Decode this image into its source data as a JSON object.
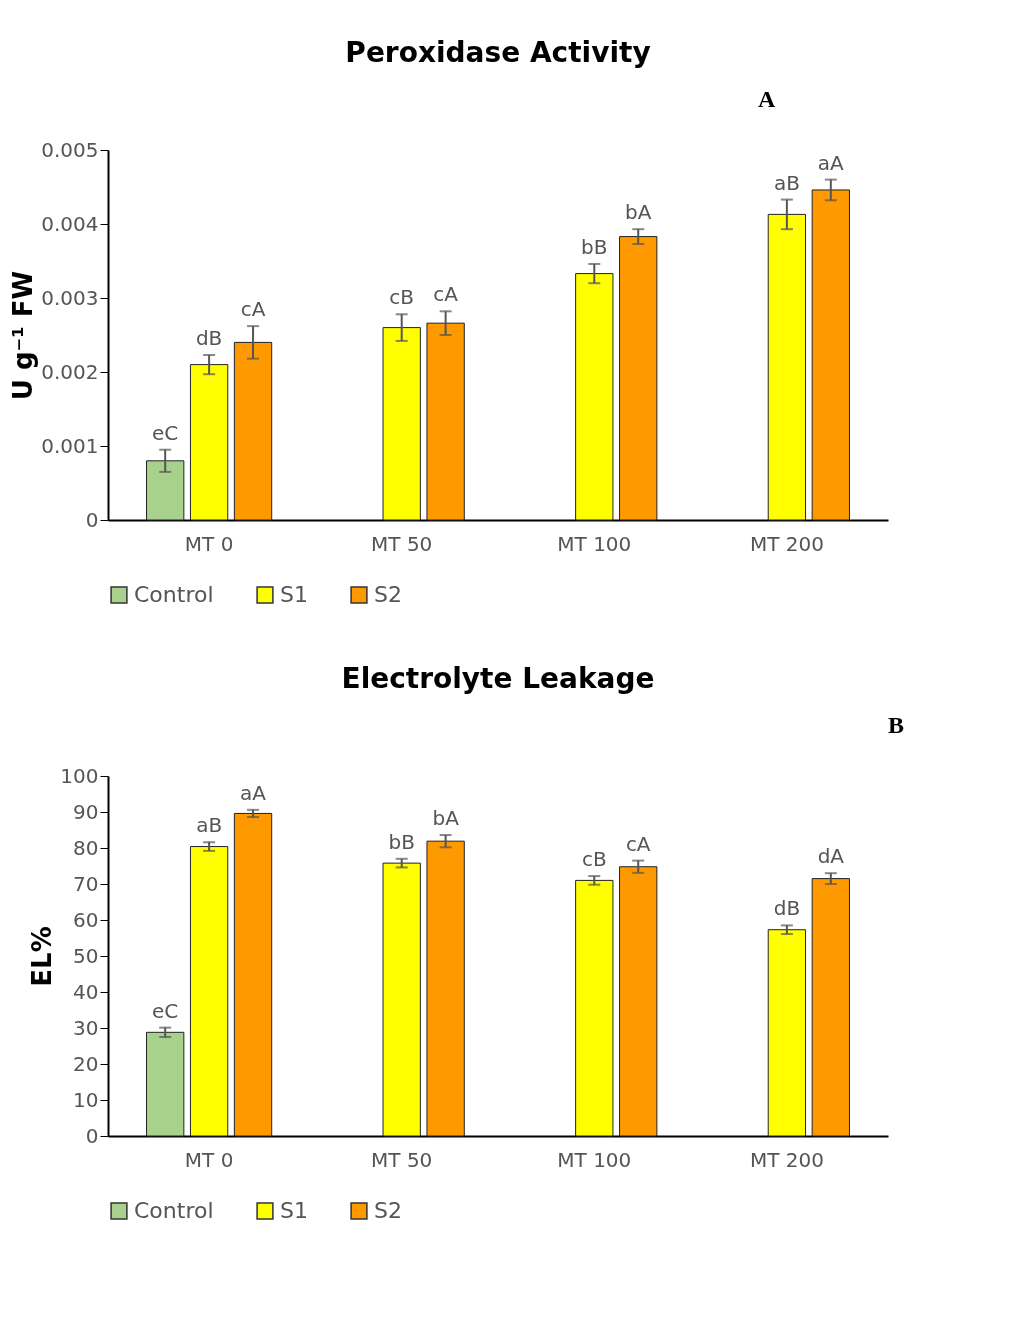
{
  "chart_data": [
    {
      "type": "bar",
      "title": "Peroxidase Activity",
      "ylabel": "U g⁻¹ FW",
      "categories": [
        "MT 0",
        "MT 50",
        "MT 100",
        "MT 200"
      ],
      "ylim": [
        0,
        0.005
      ],
      "yticks": [
        0,
        0.001,
        0.002,
        0.003,
        0.004,
        0.005
      ],
      "grid": false,
      "legend": "bottom",
      "annotations": [
        "A"
      ],
      "series": [
        {
          "name": "Control",
          "color": "#a9d18e",
          "values": [
            0.0008,
            null,
            null,
            null
          ],
          "errors": [
            0.00015,
            null,
            null,
            null
          ],
          "value_labels": [
            "eC",
            null,
            null,
            null
          ]
        },
        {
          "name": "S1",
          "color": "#ffff00",
          "values": [
            0.0021,
            0.0026,
            0.00333,
            0.00413
          ],
          "errors": [
            0.00013,
            0.00018,
            0.00013,
            0.0002
          ],
          "value_labels": [
            "dB",
            "cB",
            "bB",
            "aB"
          ]
        },
        {
          "name": "S2",
          "color": "#ff9900",
          "values": [
            0.0024,
            0.00266,
            0.00383,
            0.00446
          ],
          "errors": [
            0.00022,
            0.00016,
            0.0001,
            0.00014
          ],
          "value_labels": [
            "cA",
            "cA",
            "bA",
            "aA"
          ]
        }
      ]
    },
    {
      "type": "bar",
      "title": "Electrolyte Leakage",
      "ylabel": "EL%",
      "categories": [
        "MT 0",
        "MT 50",
        "MT 100",
        "MT 200"
      ],
      "ylim": [
        0,
        100
      ],
      "yticks": [
        0,
        10,
        20,
        30,
        40,
        50,
        60,
        70,
        80,
        90,
        100
      ],
      "grid": false,
      "legend": "bottom",
      "annotations": [
        "B"
      ],
      "series": [
        {
          "name": "Control",
          "color": "#a9d18e",
          "values": [
            28.8,
            null,
            null,
            null
          ],
          "errors": [
            1.3,
            null,
            null,
            null
          ],
          "value_labels": [
            "eC",
            null,
            null,
            null
          ]
        },
        {
          "name": "S1",
          "color": "#ffff00",
          "values": [
            80.4,
            75.8,
            71,
            57.3
          ],
          "errors": [
            1.2,
            1.2,
            1.2,
            1.2
          ],
          "value_labels": [
            "aB",
            "bB",
            "cB",
            "dB"
          ]
        },
        {
          "name": "S2",
          "color": "#ff9900",
          "values": [
            89.6,
            81.9,
            74.8,
            71.5
          ],
          "errors": [
            1,
            1.7,
            1.7,
            1.5
          ],
          "value_labels": [
            "aA",
            "bA",
            "cA",
            "dA"
          ]
        }
      ]
    }
  ]
}
